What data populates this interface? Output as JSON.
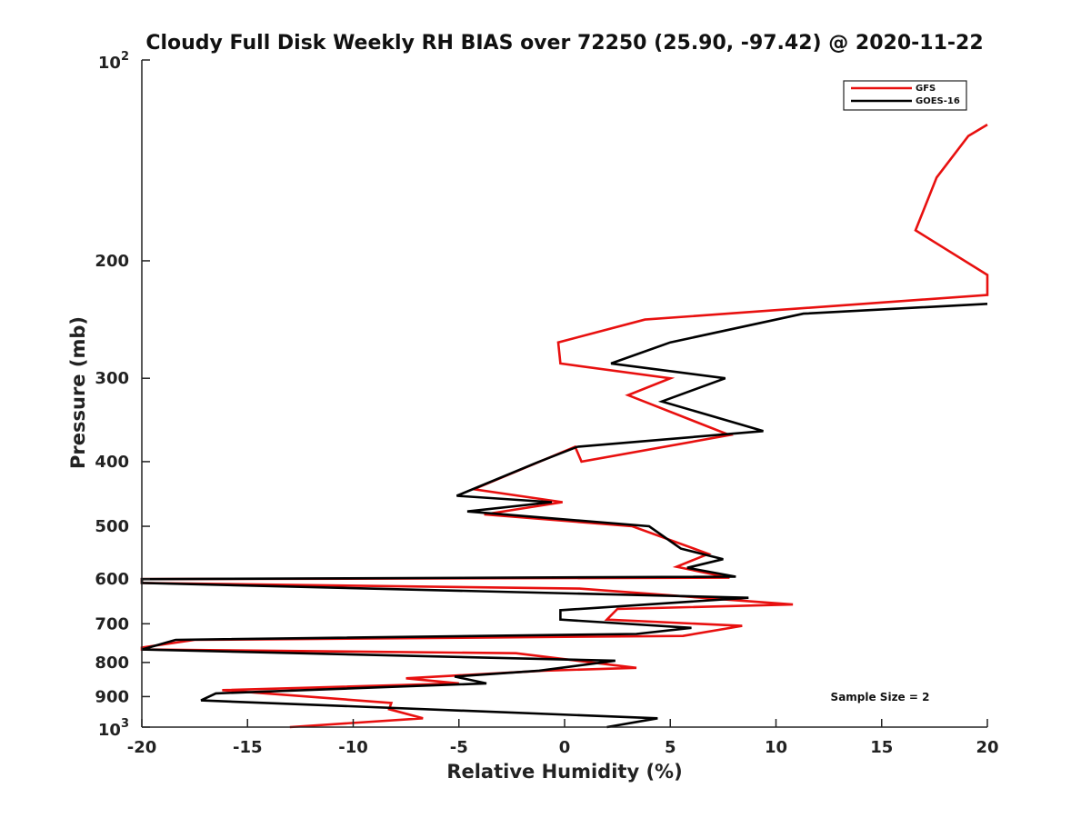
{
  "chart_data": {
    "type": "line",
    "title": "Cloudy Full Disk Weekly RH BIAS over 72250 (25.90, -97.42) @ 2020-11-22",
    "xlabel": "Relative Humidity (%)",
    "ylabel": "Pressure (mb)",
    "xlim": [
      -20,
      20
    ],
    "ylim": [
      100,
      1000
    ],
    "y_scale": "log",
    "y_reversed": true,
    "x_ticks": [
      -20,
      -15,
      -10,
      -5,
      0,
      5,
      10,
      15,
      20
    ],
    "x_tick_labels": [
      "-20",
      "-15",
      "-10",
      "-5",
      "0",
      "5",
      "10",
      "15",
      "20"
    ],
    "y_ticks": [
      {
        "value": 100,
        "base": "10",
        "exp": "2"
      },
      {
        "value": 200,
        "label": "200"
      },
      {
        "value": 300,
        "label": "300"
      },
      {
        "value": 400,
        "label": "400"
      },
      {
        "value": 500,
        "label": "500"
      },
      {
        "value": 600,
        "label": "600"
      },
      {
        "value": 700,
        "label": "700"
      },
      {
        "value": 800,
        "label": "800"
      },
      {
        "value": 900,
        "label": "900"
      },
      {
        "value": 1000,
        "base": "10",
        "exp": "3"
      }
    ],
    "grid": false,
    "legend_position": "top-right",
    "annotation": "Sample Size = 2",
    "series": [
      {
        "name": "GFS",
        "color": "#e8100f",
        "points": [
          [
            20,
            125
          ],
          [
            19.1,
            130
          ],
          [
            17.6,
            150
          ],
          [
            16.6,
            180
          ],
          [
            20,
            210
          ],
          [
            20,
            225
          ],
          [
            3.8,
            245
          ],
          [
            -0.3,
            265
          ],
          [
            -0.2,
            285
          ],
          [
            5.0,
            300
          ],
          [
            3.0,
            318
          ],
          [
            7.8,
            365
          ],
          [
            0.8,
            400
          ],
          [
            0.5,
            380
          ],
          [
            -4.3,
            440
          ],
          [
            -0.1,
            460
          ],
          [
            -3.8,
            480
          ],
          [
            3.2,
            500
          ],
          [
            6.8,
            550
          ],
          [
            5.3,
            575
          ],
          [
            7.8,
            597
          ],
          [
            -20,
            600
          ],
          [
            -20,
            608
          ],
          [
            0.7,
            620
          ],
          [
            10.8,
            655
          ],
          [
            2.5,
            665
          ],
          [
            2.0,
            690
          ],
          [
            8.4,
            705
          ],
          [
            5.6,
            730
          ],
          [
            -17.5,
            740
          ],
          [
            -20,
            760
          ],
          [
            -20,
            765
          ],
          [
            -2.3,
            775
          ],
          [
            3.4,
            815
          ],
          [
            -1.0,
            823
          ],
          [
            -7.5,
            845
          ],
          [
            -5.0,
            860
          ],
          [
            -16.2,
            880
          ],
          [
            -8.2,
            920
          ],
          [
            -8.3,
            940
          ],
          [
            -6.7,
            970
          ],
          [
            -13.0,
            1000
          ]
        ]
      },
      {
        "name": "GOES-16",
        "color": "#000000",
        "points": [
          [
            20,
            232
          ],
          [
            11.3,
            240
          ],
          [
            5.0,
            265
          ],
          [
            2.2,
            285
          ],
          [
            7.6,
            300
          ],
          [
            4.6,
            325
          ],
          [
            9.4,
            360
          ],
          [
            0.6,
            380
          ],
          [
            -1.2,
            400
          ],
          [
            -5.1,
            450
          ],
          [
            -0.6,
            460
          ],
          [
            -4.6,
            475
          ],
          [
            4.0,
            500
          ],
          [
            5.5,
            540
          ],
          [
            7.5,
            560
          ],
          [
            5.8,
            577
          ],
          [
            8.1,
            595
          ],
          [
            -20,
            600
          ],
          [
            -20,
            608
          ],
          [
            8.7,
            640
          ],
          [
            -0.2,
            668
          ],
          [
            -0.2,
            690
          ],
          [
            6.0,
            710
          ],
          [
            3.4,
            725
          ],
          [
            -18.4,
            740
          ],
          [
            -20,
            765
          ],
          [
            2.4,
            795
          ],
          [
            -1.2,
            823
          ],
          [
            -5.2,
            840
          ],
          [
            -3.7,
            860
          ],
          [
            -16.5,
            890
          ],
          [
            -17.2,
            912
          ],
          [
            4.4,
            970
          ],
          [
            2.0,
            1000
          ]
        ]
      }
    ]
  }
}
